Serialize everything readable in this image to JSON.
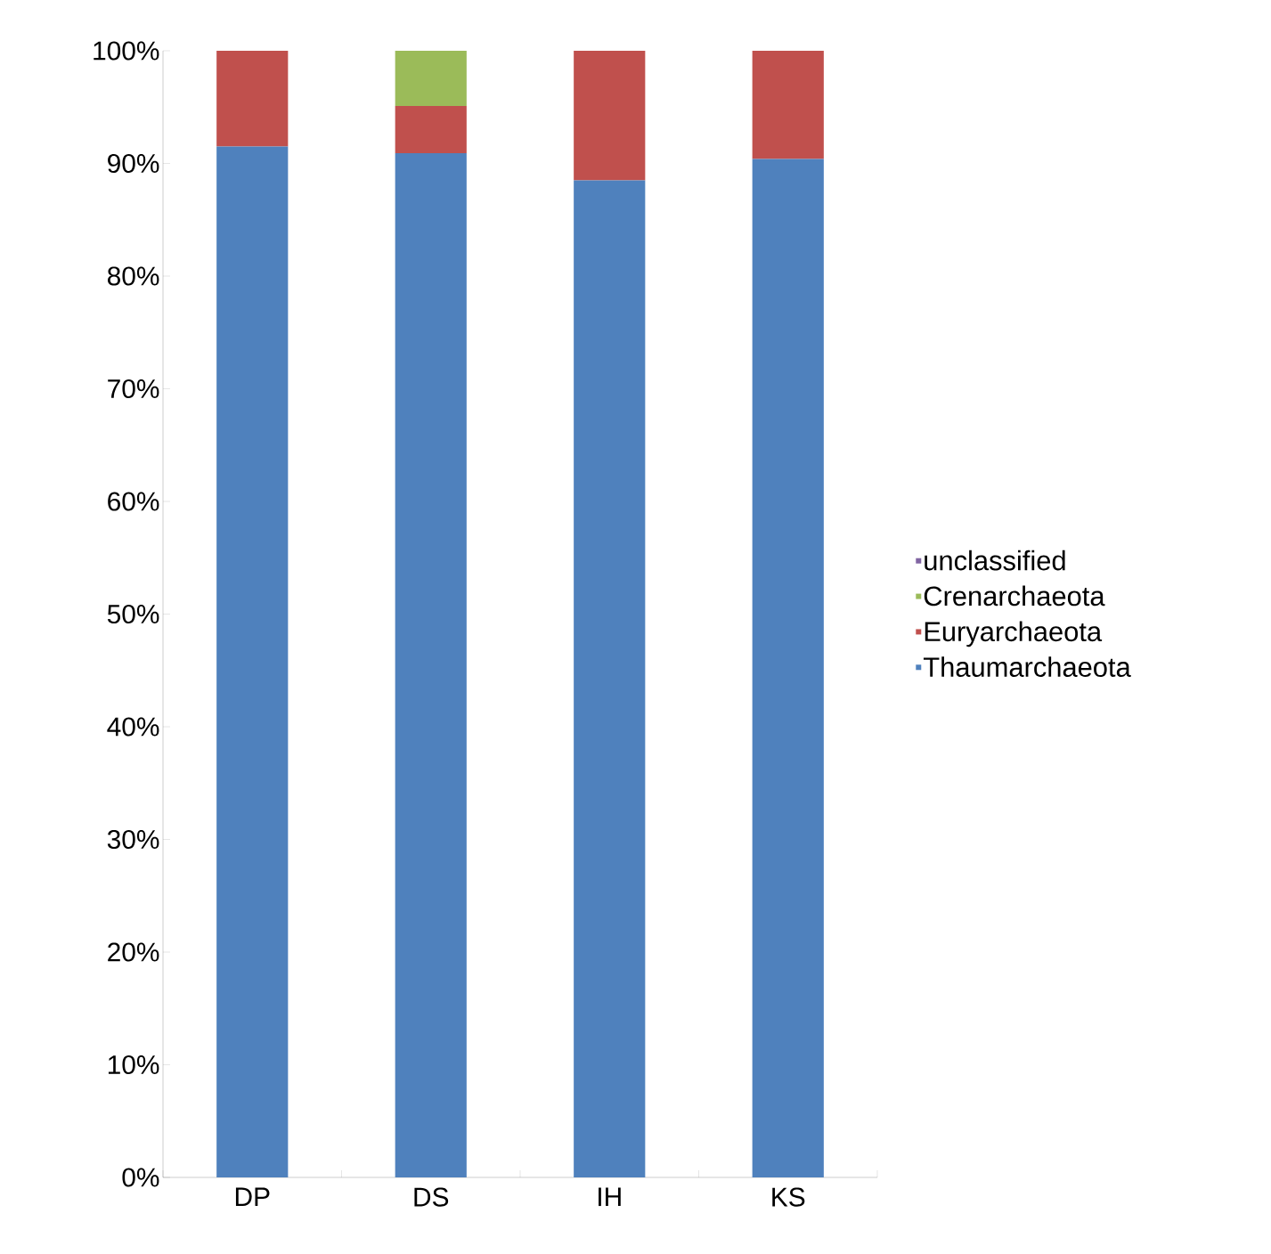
{
  "chart_data": {
    "type": "bar",
    "stacked": true,
    "categories": [
      "DP",
      "DS",
      "IH",
      "KS"
    ],
    "series": [
      {
        "name": "Thaumarchaeota",
        "color": "#4f81bd",
        "values": [
          91.5,
          90.9,
          88.5,
          90.4
        ]
      },
      {
        "name": "Euryarchaeota",
        "color": "#c0504d",
        "values": [
          8.5,
          4.2,
          11.5,
          9.6
        ]
      },
      {
        "name": "Crenarchaeota",
        "color": "#9bbb59",
        "values": [
          0,
          4.9,
          0,
          0
        ]
      },
      {
        "name": "unclassified",
        "color": "#8064a2",
        "values": [
          0,
          0,
          0,
          0
        ]
      }
    ],
    "ylim": [
      0,
      100
    ],
    "yticks": [
      {
        "value": 0,
        "label": "0%"
      },
      {
        "value": 10,
        "label": "10%"
      },
      {
        "value": 20,
        "label": "20%"
      },
      {
        "value": 30,
        "label": "30%"
      },
      {
        "value": 40,
        "label": "40%"
      },
      {
        "value": 50,
        "label": "50%"
      },
      {
        "value": 60,
        "label": "60%"
      },
      {
        "value": 70,
        "label": "70%"
      },
      {
        "value": 80,
        "label": "80%"
      },
      {
        "value": 90,
        "label": "90%"
      },
      {
        "value": 100,
        "label": "100%"
      }
    ],
    "legend": "right",
    "grid": false
  }
}
